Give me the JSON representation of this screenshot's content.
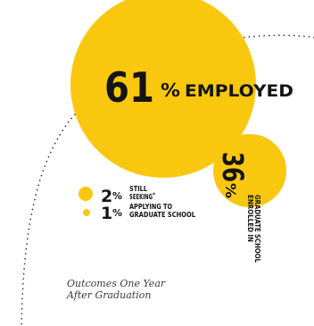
{
  "colors": {
    "accent": "#F9C80E",
    "text": "#141414",
    "dots": "#2b2b2b",
    "caption": "#3a3a3a"
  },
  "caption": [
    "Outcomes One Year",
    "After Graduation"
  ],
  "chart_data": {
    "type": "bubble",
    "unit": "%",
    "series": [
      {
        "value": 61,
        "label": "EMPLOYED",
        "color": "#F9C80E"
      },
      {
        "value": 36,
        "label": [
          "ENROLLED IN",
          "GRADUATE SCHOOL"
        ],
        "color": "#F9C80E"
      },
      {
        "value": 2,
        "label": [
          "STILL",
          "SEEKING"
        ],
        "footnote": "*",
        "color": "#F9C80E"
      },
      {
        "value": 1,
        "label": [
          "APPLYING TO",
          "GRADUATE SCHOOL"
        ],
        "color": "#F9C80E"
      }
    ]
  }
}
